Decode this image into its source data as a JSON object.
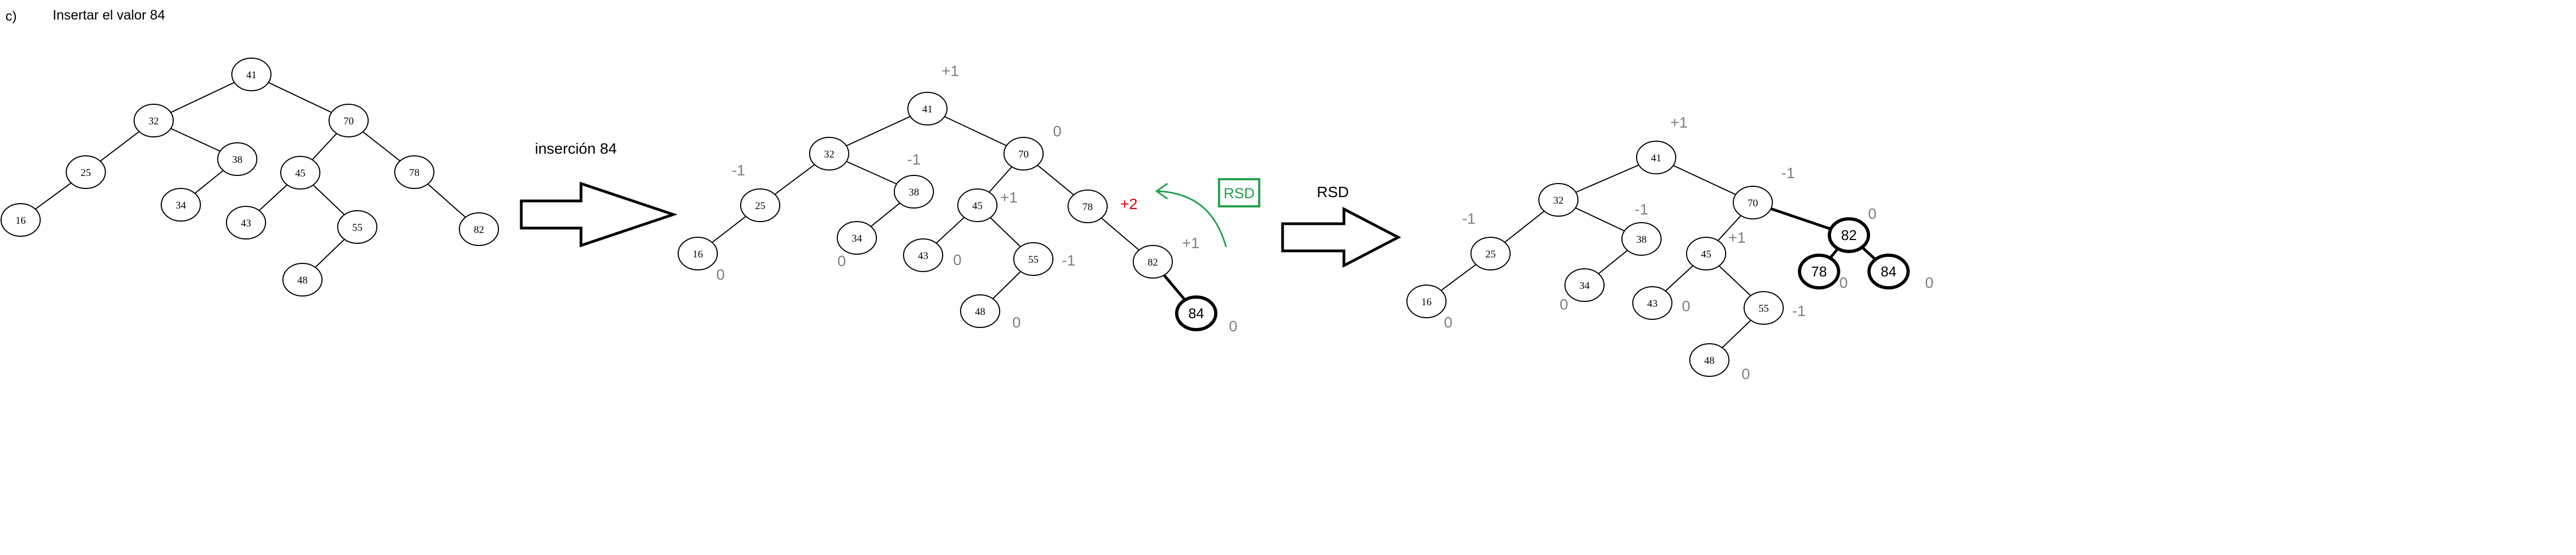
{
  "header": {
    "label": "c)",
    "title": "Insertar el valor 84"
  },
  "arrows": {
    "insert_label": "inserción 84",
    "rotation_label": "RSD",
    "rotation_box_label": "RSD"
  },
  "trees": [
    {
      "name": "original",
      "nodes": [
        {
          "id": "a41",
          "value": "41"
        },
        {
          "id": "a32",
          "value": "32"
        },
        {
          "id": "a70",
          "value": "70"
        },
        {
          "id": "a25",
          "value": "25"
        },
        {
          "id": "a38",
          "value": "38"
        },
        {
          "id": "a45",
          "value": "45"
        },
        {
          "id": "a78",
          "value": "78"
        },
        {
          "id": "a16",
          "value": "16"
        },
        {
          "id": "a34",
          "value": "34"
        },
        {
          "id": "a43",
          "value": "43"
        },
        {
          "id": "a55",
          "value": "55"
        },
        {
          "id": "a82",
          "value": "82"
        },
        {
          "id": "a48",
          "value": "48"
        }
      ]
    },
    {
      "name": "after-insertion",
      "nodes": [
        {
          "id": "b41",
          "value": "41",
          "balance": "+1"
        },
        {
          "id": "b32",
          "value": "32"
        },
        {
          "id": "b70",
          "value": "70",
          "balance": "0"
        },
        {
          "id": "b25",
          "value": "25",
          "balance": "-1"
        },
        {
          "id": "b38",
          "value": "38",
          "balance": "-1"
        },
        {
          "id": "b45",
          "value": "45",
          "balance": "+1"
        },
        {
          "id": "b78",
          "value": "78",
          "balance": "+2"
        },
        {
          "id": "b16",
          "value": "16",
          "balance": "0"
        },
        {
          "id": "b34",
          "value": "34",
          "balance": "0"
        },
        {
          "id": "b43",
          "value": "43",
          "balance": "0"
        },
        {
          "id": "b55",
          "value": "55",
          "balance": "-1"
        },
        {
          "id": "b82",
          "value": "82",
          "balance": "+1"
        },
        {
          "id": "b48",
          "value": "48",
          "balance": "0"
        },
        {
          "id": "b84",
          "value": "84",
          "balance": "0",
          "highlight": true
        }
      ]
    },
    {
      "name": "after-rotation",
      "nodes": [
        {
          "id": "c41",
          "value": "41",
          "balance": "+1"
        },
        {
          "id": "c32",
          "value": "32"
        },
        {
          "id": "c70",
          "value": "70",
          "balance": "-1"
        },
        {
          "id": "c25",
          "value": "25",
          "balance": "-1"
        },
        {
          "id": "c38",
          "value": "38",
          "balance": "-1"
        },
        {
          "id": "c45",
          "value": "45",
          "balance": "+1"
        },
        {
          "id": "c82",
          "value": "82",
          "balance": "0",
          "highlight": true
        },
        {
          "id": "c16",
          "value": "16",
          "balance": "0"
        },
        {
          "id": "c34",
          "value": "34",
          "balance": "0"
        },
        {
          "id": "c43",
          "value": "43",
          "balance": "0"
        },
        {
          "id": "c55",
          "value": "55",
          "balance": "-1"
        },
        {
          "id": "c78",
          "value": "78",
          "balance": "0",
          "highlight": true
        },
        {
          "id": "c84",
          "value": "84",
          "balance": "0",
          "highlight": true
        },
        {
          "id": "c48",
          "value": "48",
          "balance": "0"
        }
      ]
    }
  ],
  "colors": {
    "unbalanced": "#e00000",
    "rotation": "#22a04b",
    "balance": "#7f7f7f"
  }
}
